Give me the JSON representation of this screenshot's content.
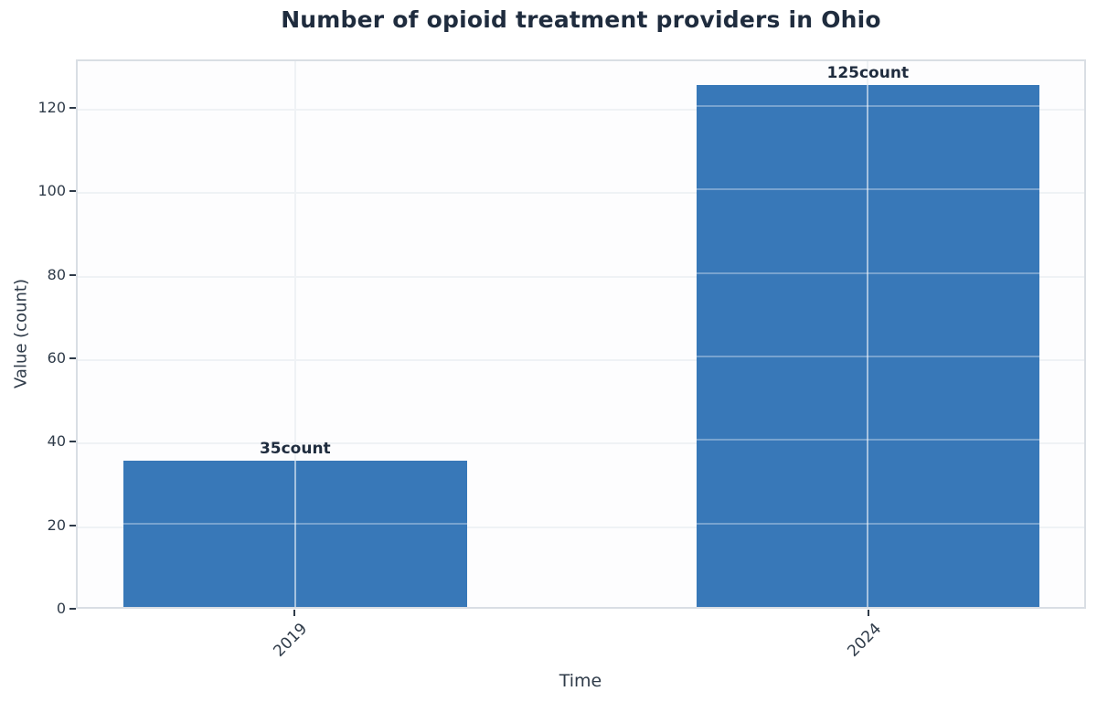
{
  "chart_data": {
    "type": "bar",
    "title": "Number of opioid treatment providers in Ohio",
    "categories": [
      "2019",
      "2024"
    ],
    "values": [
      35,
      125
    ],
    "bar_labels": [
      "35count",
      "125count"
    ],
    "unit": "count",
    "xlabel": "Time",
    "ylabel": "Value (count)",
    "yticks": [
      0,
      20,
      40,
      60,
      80,
      100,
      120
    ],
    "ylim": [
      0,
      131.6
    ],
    "grid": true,
    "legend_position": "none",
    "x_tick_rotation_deg": 45,
    "colors": {
      "bar": "#3878b8",
      "title_text": "#1f2c3e",
      "tick_text": "#2f3b49",
      "grid": "#eff2f5",
      "border": "#d9dee4",
      "background": "#ffffff"
    },
    "layout": {
      "bar_centers_pct": [
        21.6,
        78.5
      ],
      "bar_width_pct": 34.1
    }
  }
}
